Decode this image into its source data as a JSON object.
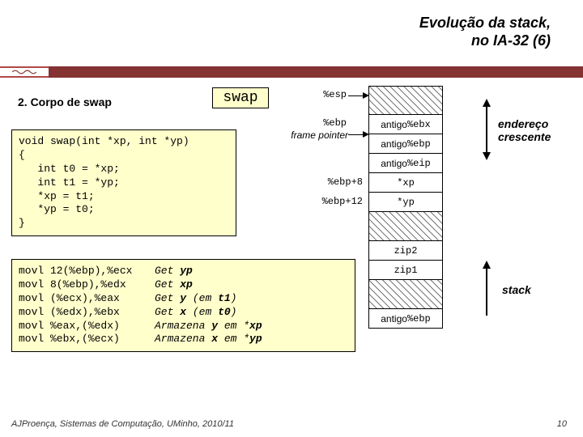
{
  "title_line1": "Evolução da stack,",
  "title_line2": "no IA-32 (6)",
  "section": "2. Corpo de swap",
  "swap_title": "swap",
  "code_c": "void swap(int *xp, int *yp)\n{\n   int t0 = *xp;\n   int t1 = *yp;\n   *xp = t1;\n   *yp = t0;\n}",
  "asm": [
    {
      "op": "movl 12(%ebp),%ecx",
      "cmt": "Get <b>yp</b>"
    },
    {
      "op": "movl 8(%ebp),%edx",
      "cmt": "Get <b>xp</b>"
    },
    {
      "op": "movl (%ecx),%eax",
      "cmt": "Get <b>y</b> <i>(em</i> <b>t1</b><i>)</i>"
    },
    {
      "op": "movl (%edx),%ebx",
      "cmt": "Get <b>x</b> <i>(em</i> <b>t0</b><i>)</i>"
    },
    {
      "op": "movl %eax,(%edx)",
      "cmt": "Armazena <b>y</b> em *<b>xp</b>"
    },
    {
      "op": "movl %ebx,(%ecx)",
      "cmt": "Armazena <b>x</b> em *<b>yp</b>"
    }
  ],
  "stack_cells": [
    {
      "text": "",
      "hatch": true
    },
    {
      "text": "antigo %ebx"
    },
    {
      "text": "antigo %ebp"
    },
    {
      "text": "antigo %eip"
    },
    {
      "text": "*xp",
      "mono": true
    },
    {
      "text": "*yp",
      "mono": true
    },
    {
      "text": "",
      "hatch": true
    },
    {
      "text": "zip2",
      "mono": true
    },
    {
      "text": "zip1",
      "mono": true
    },
    {
      "text": "",
      "hatch": true
    },
    {
      "text": "antigo %ebp"
    }
  ],
  "esp_label": "%esp",
  "ebp_label": "%ebp",
  "fp_label": "frame pointer",
  "ebp8": "%ebp+8",
  "ebp12": "%ebp+12",
  "side1a": "endereço",
  "side1b": "crescente",
  "side2": "stack",
  "footer": "AJProença, Sistemas de Computação, UMinho, 2010/11",
  "pagenum": "10",
  "colors": {
    "code_bg": "#ffffcc",
    "bar": "#853232"
  }
}
